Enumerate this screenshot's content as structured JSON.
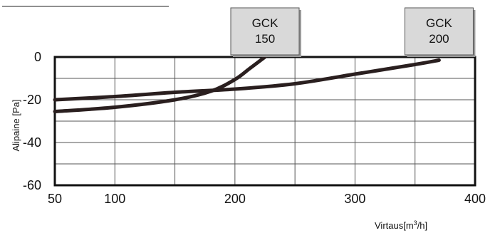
{
  "chart_data": {
    "type": "line",
    "title": "",
    "ylabel": "Alipaine  [Pa]",
    "xlabel_base": "Virtaus[m",
    "xlabel_sup": "3",
    "xlabel_tail": "/h]",
    "xlim": [
      50,
      400
    ],
    "ylim": [
      -60,
      0
    ],
    "x_ticks": [
      50,
      100,
      200,
      300,
      400
    ],
    "x_tick_labels": [
      "50",
      "100",
      "200",
      "300",
      "400"
    ],
    "x_gridlines": [
      50,
      100,
      150,
      200,
      250,
      300,
      350
    ],
    "y_ticks": [
      0,
      -20,
      -40,
      -60
    ],
    "y_tick_labels": [
      "0",
      "-20",
      "-40",
      "-60"
    ],
    "y_gridlines": [
      -10,
      -20,
      -30,
      -40,
      -50
    ],
    "grid": true,
    "series": [
      {
        "name": "GCK 150",
        "label_lines": [
          "GCK",
          "150"
        ],
        "x": [
          50,
          100,
          150,
          180,
          200,
          212,
          225
        ],
        "y": [
          -25.5,
          -23.5,
          -20,
          -16,
          -10.5,
          -5.5,
          0
        ],
        "color": "#2a1f1f"
      },
      {
        "name": "GCK 200",
        "label_lines": [
          "GCK",
          "200"
        ],
        "x": [
          50,
          100,
          150,
          200,
          250,
          300,
          350,
          370
        ],
        "y": [
          -20,
          -18.5,
          -16.5,
          -15,
          -12.5,
          -8,
          -3.5,
          -1.5
        ],
        "color": "#2a1f1f"
      }
    ]
  }
}
